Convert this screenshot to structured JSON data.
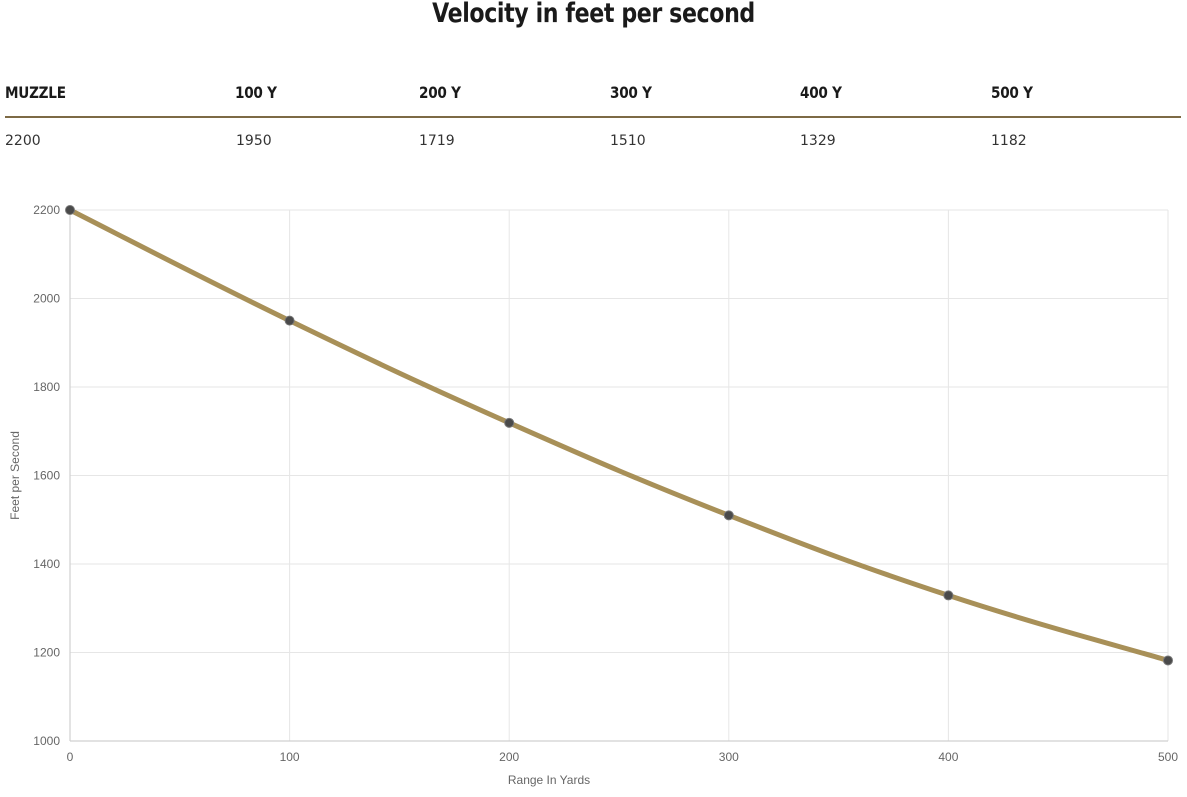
{
  "title": "Velocity in feet per second",
  "table": {
    "headers": [
      "MUZZLE",
      "100 Y",
      "200 Y",
      "300 Y",
      "400 Y",
      "500 Y"
    ],
    "values": [
      "2200",
      "1950",
      "1719",
      "1510",
      "1329",
      "1182"
    ]
  },
  "colors": {
    "line": "#a89058",
    "point": "#4a4a4a",
    "grid": "#e6e6e6",
    "table_rule": "#7d6a45"
  },
  "chart_data": {
    "type": "line",
    "x": [
      0,
      100,
      200,
      300,
      400,
      500
    ],
    "series": [
      {
        "values": [
          2200,
          1950,
          1719,
          1510,
          1329,
          1182
        ]
      }
    ],
    "xlabel": "Range In Yards",
    "ylabel": "Feet per Second",
    "xlim": [
      0,
      500
    ],
    "ylim": [
      1000,
      2200
    ],
    "xticks": [
      "0",
      "100",
      "200",
      "300",
      "400",
      "500"
    ],
    "yticks": [
      "1000",
      "1200",
      "1400",
      "1600",
      "1800",
      "2000",
      "2200"
    ],
    "grid": true,
    "legend": "none"
  }
}
